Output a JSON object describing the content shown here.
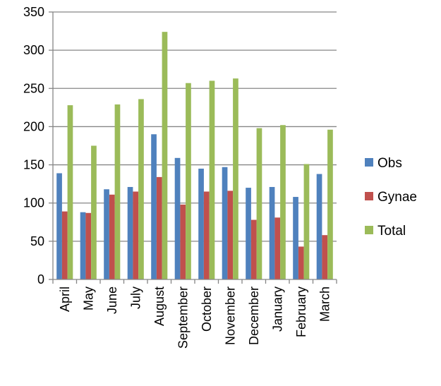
{
  "chart_data": {
    "type": "bar",
    "categories": [
      "April",
      "May",
      "June",
      "July",
      "August",
      "September",
      "October",
      "November",
      "December",
      "January",
      "February",
      "March"
    ],
    "series": [
      {
        "name": "Obs",
        "color": "#4F81BD",
        "values": [
          139,
          88,
          118,
          121,
          190,
          159,
          145,
          147,
          120,
          121,
          108,
          138
        ]
      },
      {
        "name": "Gynae",
        "color": "#C0504D",
        "values": [
          89,
          87,
          111,
          115,
          134,
          98,
          115,
          116,
          78,
          81,
          43,
          58
        ]
      },
      {
        "name": "Total",
        "color": "#9BBB59",
        "values": [
          228,
          175,
          229,
          236,
          324,
          257,
          260,
          263,
          198,
          202,
          151,
          196
        ]
      }
    ],
    "ylim": [
      0,
      350
    ],
    "yticks": [
      0,
      50,
      100,
      150,
      200,
      250,
      300,
      350
    ],
    "grid": true,
    "legend_position": "right",
    "title": "",
    "xlabel": "",
    "ylabel": ""
  }
}
